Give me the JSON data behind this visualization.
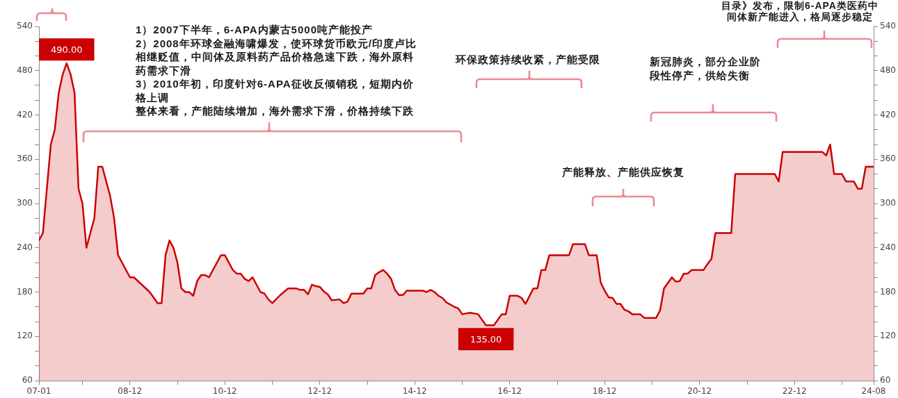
{
  "chart_data": {
    "type": "area",
    "x": [
      "2007-01",
      "2007-02",
      "2007-04",
      "2007-05",
      "2007-06",
      "2007-07",
      "2007-08",
      "2007-09",
      "2007-10",
      "2007-11",
      "2007-12",
      "2008-01",
      "2008-03",
      "2008-04",
      "2008-05",
      "2008-07",
      "2008-08",
      "2008-09",
      "2008-12",
      "2009-01",
      "2009-05",
      "2009-07",
      "2009-08",
      "2009-09",
      "2009-10",
      "2009-11",
      "2009-12",
      "2010-01",
      "2010-02",
      "2010-03",
      "2010-04",
      "2010-05",
      "2010-06",
      "2010-07",
      "2010-08",
      "2010-11",
      "2010-12",
      "2011-02",
      "2011-03",
      "2011-04",
      "2011-05",
      "2011-06",
      "2011-07",
      "2011-09",
      "2011-10",
      "2011-11",
      "2011-12",
      "2012-02",
      "2012-04",
      "2012-06",
      "2012-07",
      "2012-08",
      "2012-09",
      "2012-10",
      "2012-11",
      "2012-12",
      "2013-01",
      "2013-02",
      "2013-03",
      "2013-05",
      "2013-06",
      "2013-07",
      "2013-08",
      "2013-11",
      "2013-12",
      "2014-01",
      "2014-02",
      "2014-03",
      "2014-04",
      "2014-05",
      "2014-06",
      "2014-07",
      "2014-08",
      "2014-09",
      "2014-10",
      "2015-02",
      "2015-03",
      "2015-04",
      "2015-05",
      "2015-06",
      "2015-07",
      "2015-08",
      "2015-10",
      "2015-11",
      "2015-12",
      "2016-02",
      "2016-04",
      "2016-06",
      "2016-08",
      "2016-10",
      "2016-11",
      "2016-12",
      "2017-02",
      "2017-03",
      "2017-04",
      "2017-06",
      "2017-07",
      "2017-08",
      "2017-09",
      "2017-10",
      "2018-03",
      "2018-04",
      "2018-07",
      "2018-08",
      "2018-10",
      "2018-11",
      "2018-12",
      "2019-01",
      "2019-02",
      "2019-03",
      "2019-04",
      "2019-05",
      "2019-06",
      "2019-07",
      "2019-09",
      "2019-10",
      "2020-01",
      "2020-02",
      "2020-03",
      "2020-05",
      "2020-06",
      "2020-07",
      "2020-08",
      "2020-09",
      "2020-10",
      "2021-01",
      "2021-02",
      "2021-03",
      "2021-04",
      "2021-08",
      "2021-09",
      "2022-07",
      "2022-08",
      "2022-09",
      "2023-07",
      "2023-08",
      "2023-09",
      "2023-10",
      "2023-12",
      "2024-01",
      "2024-03",
      "2024-04",
      "2024-05",
      "2024-06",
      "2024-08"
    ],
    "series": [
      {
        "color": "#cc0000",
        "values": [
          250,
          260,
          380,
          400,
          450,
          475,
          490,
          475,
          450,
          320,
          300,
          240,
          280,
          350,
          350,
          310,
          280,
          230,
          200,
          200,
          180,
          165,
          165,
          230,
          250,
          240,
          220,
          185,
          180,
          180,
          175,
          195,
          203,
          203,
          200,
          230,
          230,
          210,
          205,
          205,
          198,
          195,
          200,
          180,
          178,
          170,
          165,
          176,
          185,
          185,
          183,
          183,
          177,
          190,
          188,
          187,
          181,
          177,
          169,
          170,
          165,
          167,
          178,
          178,
          185,
          185,
          203,
          207,
          210,
          205,
          198,
          183,
          176,
          176,
          182,
          182,
          180,
          183,
          180,
          175,
          172,
          166,
          160,
          158,
          150,
          152,
          150,
          135,
          135,
          150,
          150,
          175,
          175,
          172,
          164,
          185,
          185,
          210,
          210,
          230,
          230,
          245,
          245,
          230,
          230,
          193,
          182,
          173,
          172,
          164,
          164,
          156,
          154,
          150,
          150,
          145,
          145,
          155,
          185,
          200,
          194,
          195,
          205,
          205,
          210,
          210,
          218,
          225,
          260,
          260,
          340,
          340,
          330,
          370,
          370,
          365,
          380,
          340,
          340,
          330,
          330,
          320,
          320,
          350,
          350
        ],
        "value_labels": [
          null,
          null,
          null,
          null,
          null,
          null,
          "490.00",
          null,
          null,
          null,
          null,
          null,
          null,
          null,
          null,
          null,
          null,
          null,
          null,
          null,
          null,
          null,
          null,
          null,
          null,
          null,
          null,
          null,
          null,
          null,
          null,
          null,
          null,
          null,
          null,
          null,
          null,
          null,
          null,
          null,
          null,
          null,
          null,
          null,
          null,
          null,
          null,
          null,
          null,
          null,
          null,
          null,
          null,
          null,
          null,
          null,
          null,
          null,
          null,
          null,
          null,
          null,
          null,
          null,
          null,
          null,
          null,
          null,
          null,
          null,
          null,
          null,
          null,
          null,
          null,
          null,
          null,
          null,
          null,
          null,
          null,
          null,
          null,
          null,
          null,
          null,
          null,
          "135.00",
          null,
          null,
          null,
          null,
          null,
          null,
          null,
          null,
          null,
          null,
          null,
          null,
          null,
          null,
          null,
          null,
          null,
          null,
          null,
          null,
          null,
          null,
          null,
          null,
          null,
          null,
          null,
          null,
          null,
          null,
          null,
          null,
          null,
          null,
          null,
          null,
          null,
          null,
          null,
          null,
          null,
          null,
          null,
          null,
          null,
          null,
          null,
          null,
          null,
          null,
          null,
          null,
          null,
          null,
          null,
          null,
          null
        ]
      }
    ],
    "xlim": [
      "2007-01",
      "2024-08"
    ],
    "xticks": [
      {
        "value": "2007-01",
        "label": "07-01"
      },
      {
        "value": "2007-12",
        "label": null
      },
      {
        "value": "2008-12",
        "label": "08-12"
      },
      {
        "value": "2009-12",
        "label": null
      },
      {
        "value": "2010-12",
        "label": "10-12"
      },
      {
        "value": "2011-12",
        "label": null
      },
      {
        "value": "2012-12",
        "label": "12-12"
      },
      {
        "value": "2013-12",
        "label": null
      },
      {
        "value": "2014-12",
        "label": "14-12"
      },
      {
        "value": "2015-12",
        "label": null
      },
      {
        "value": "2016-12",
        "label": "16-12"
      },
      {
        "value": "2017-12",
        "label": null
      },
      {
        "value": "2018-12",
        "label": "18-12"
      },
      {
        "value": "2019-12",
        "label": null
      },
      {
        "value": "2020-12",
        "label": "20-12"
      },
      {
        "value": "2021-12",
        "label": null
      },
      {
        "value": "2022-12",
        "label": "22-12"
      },
      {
        "value": "2023-12",
        "label": null
      },
      {
        "value": "2024-08",
        "label": "24-08"
      }
    ],
    "ylim": [
      60,
      540
    ],
    "yticks": [
      60,
      {
        "value": 80,
        "label": null
      },
      {
        "value": 100,
        "label": null
      },
      120,
      {
        "value": 140,
        "label": null
      },
      {
        "value": 160,
        "label": null
      },
      180,
      {
        "value": 200,
        "label": null
      },
      {
        "value": 220,
        "label": null
      },
      240,
      {
        "value": 260,
        "label": null
      },
      {
        "value": 280,
        "label": null
      },
      300,
      {
        "value": 320,
        "label": null
      },
      {
        "value": 340,
        "label": null
      },
      360,
      {
        "value": 380,
        "label": null
      },
      {
        "value": 400,
        "label": null
      },
      420,
      {
        "value": 440,
        "label": null
      },
      {
        "value": 460,
        "label": null
      },
      480,
      {
        "value": 500,
        "label": null
      },
      {
        "value": 520,
        "label": null
      },
      540
    ],
    "y2lim": [
      60,
      540
    ],
    "y2ticks": [
      60,
      {
        "value": 80,
        "label": null
      },
      {
        "value": 100,
        "label": null
      },
      120,
      {
        "value": 140,
        "label": null
      },
      {
        "value": 160,
        "label": null
      },
      180,
      {
        "value": 200,
        "label": null
      },
      {
        "value": 220,
        "label": null
      },
      240,
      {
        "value": 260,
        "label": null
      },
      {
        "value": 280,
        "label": null
      },
      300,
      {
        "value": 320,
        "label": null
      },
      {
        "value": 340,
        "label": null
      },
      360,
      {
        "value": 380,
        "label": null
      },
      {
        "value": 400,
        "label": null
      },
      420,
      {
        "value": 440,
        "label": null
      },
      {
        "value": 460,
        "label": null
      },
      480,
      {
        "value": 500,
        "label": null
      },
      {
        "value": 520,
        "label": null
      },
      540
    ],
    "annotations": [
      "1）2007下半年，6-APA内蒙古5000吨产能投产",
      "2）2008年环球金融海啸爆发，使环球货币欧元/印度卢比相继贬值，中间体及原料药产品价格急速下跌，海外原料药需求下滑",
      "3）2010年初，印度针对6-APA征收反倾销税，短期内价格上调",
      "整体来看，产能陆续增加，海外需求下滑，价格持续下跌",
      "环保政策持续收紧，产能受限",
      "新冠肺炎，部分企业阶段性停产，供给失衡",
      "产能释放、产能供应恢复",
      "目录》发布，限制6-APA类医药中间体新产能进入，格局逐步稳定"
    ]
  }
}
